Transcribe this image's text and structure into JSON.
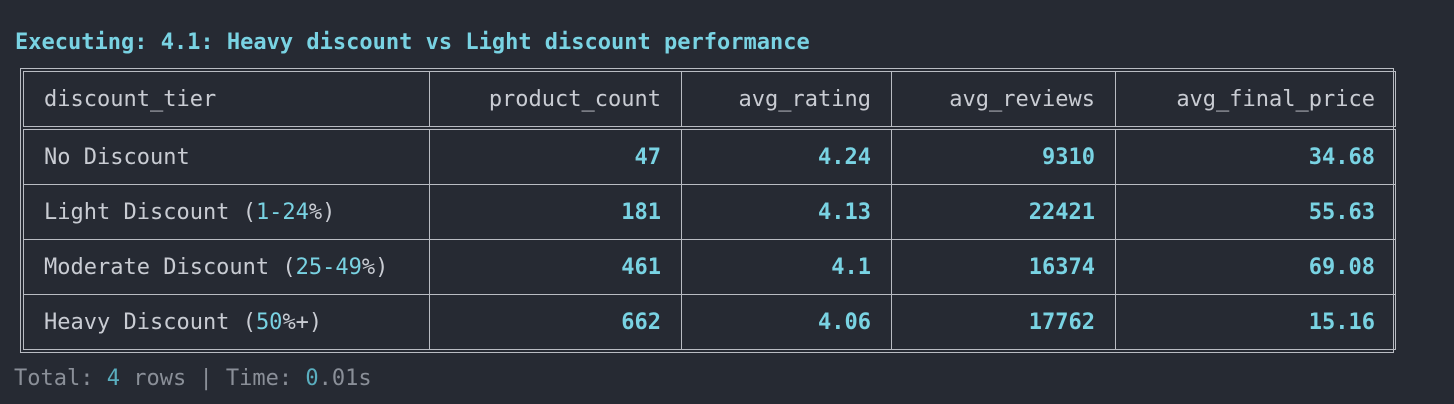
{
  "exec_line": "Executing: 4.1: Heavy discount vs Light discount performance",
  "table": {
    "columns": [
      "discount_tier",
      "product_count",
      "avg_rating",
      "avg_reviews",
      "avg_final_price"
    ],
    "rows": [
      {
        "tier_name": "No Discount",
        "tier_paren_open": "",
        "tier_range": "",
        "tier_paren_close": "",
        "product_count": "47",
        "avg_rating": "4.24",
        "avg_reviews": "9310",
        "avg_final_price": "34.68"
      },
      {
        "tier_name": "Light Discount ",
        "tier_paren_open": "(",
        "tier_range": "1-24",
        "tier_paren_close": "%)",
        "product_count": "181",
        "avg_rating": "4.13",
        "avg_reviews": "22421",
        "avg_final_price": "55.63"
      },
      {
        "tier_name": "Moderate Discount ",
        "tier_paren_open": "(",
        "tier_range": "25-49",
        "tier_paren_close": "%)",
        "product_count": "461",
        "avg_rating": "4.1",
        "avg_reviews": "16374",
        "avg_final_price": "69.08"
      },
      {
        "tier_name": "Heavy Discount ",
        "tier_paren_open": "(",
        "tier_range": "50",
        "tier_paren_close": "%+)",
        "product_count": "662",
        "avg_rating": "4.06",
        "avg_reviews": "17762",
        "avg_final_price": "15.16"
      }
    ]
  },
  "footer": {
    "total_label": "Total: ",
    "row_count": "4",
    "rows_label": " rows | Time: ",
    "time_int": "0",
    "time_rest": ".01s"
  },
  "colors": {
    "background": "#262a33",
    "accent": "#79d3e3",
    "text": "#c9ccd3",
    "muted": "#8a8f98",
    "border": "#b9bcc3"
  }
}
